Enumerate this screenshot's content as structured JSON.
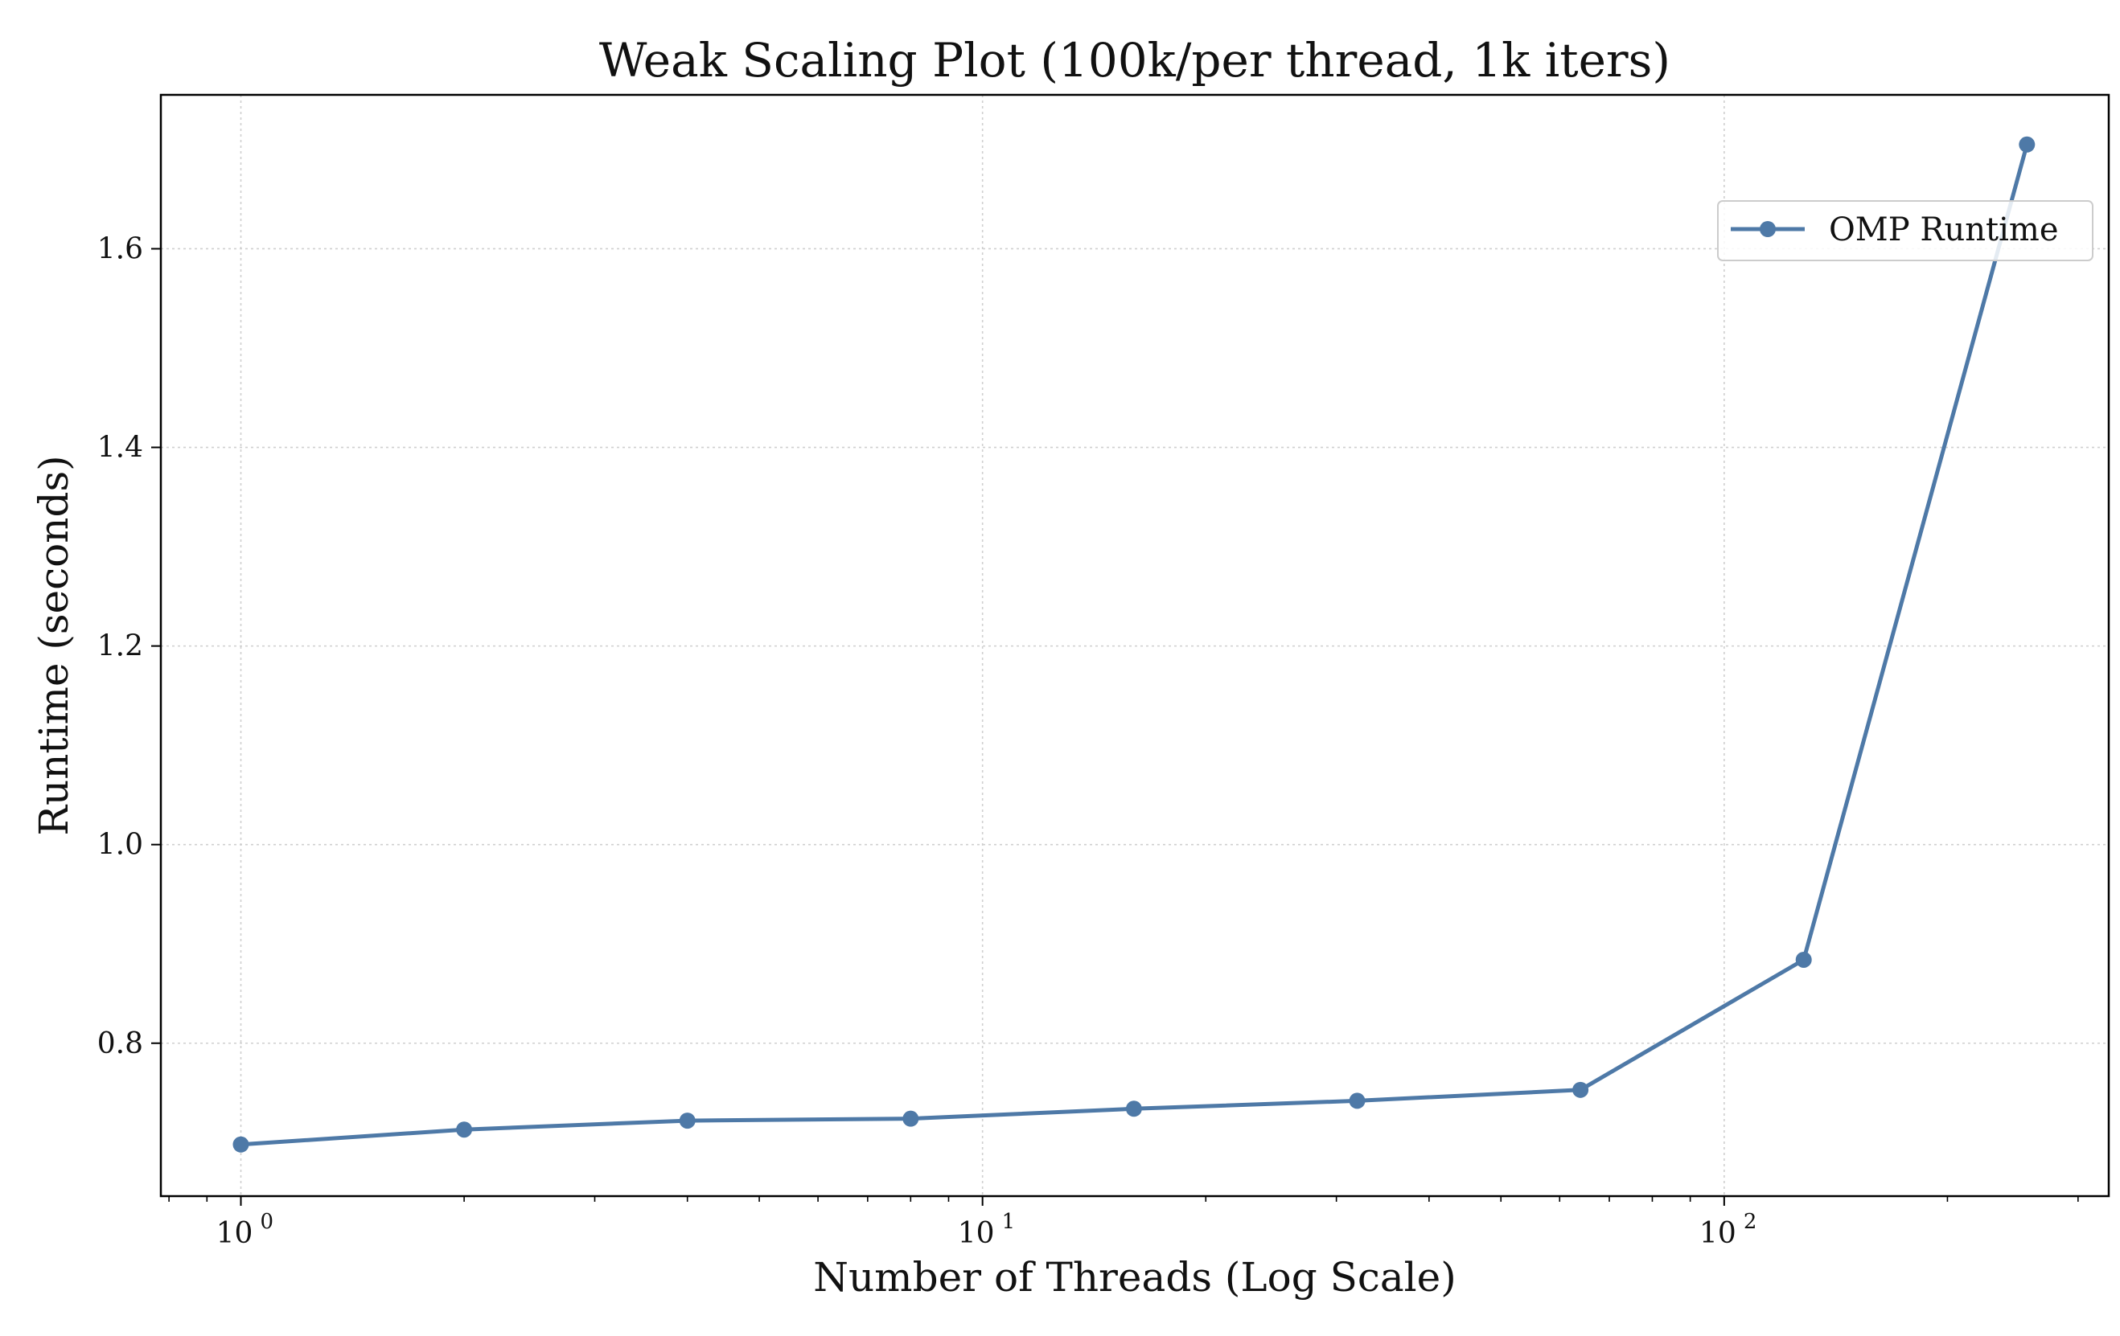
{
  "chart_data": {
    "type": "line",
    "title": "Weak Scaling Plot (100k/per thread, 1k iters)",
    "xlabel": "Number of Threads (Log Scale)",
    "ylabel": "Runtime (seconds)",
    "x_scale": "log",
    "xlim": [
      0.78,
      330
    ],
    "ylim": [
      0.646,
      1.755
    ],
    "x_ticks": [
      {
        "value": 1,
        "base": "10",
        "exp": "0"
      },
      {
        "value": 10,
        "base": "10",
        "exp": "1"
      },
      {
        "value": 100,
        "base": "10",
        "exp": "2"
      }
    ],
    "y_ticks": [
      {
        "value": 0.8,
        "label": "0.8"
      },
      {
        "value": 1.0,
        "label": "1.0"
      },
      {
        "value": 1.2,
        "label": "1.2"
      },
      {
        "value": 1.4,
        "label": "1.4"
      },
      {
        "value": 1.6,
        "label": "1.6"
      }
    ],
    "grid": true,
    "legend_position": "upper right",
    "series": [
      {
        "name": "OMP Runtime",
        "color": "#4e79a7",
        "x": [
          1,
          2,
          4,
          8,
          16,
          32,
          64,
          128,
          256
        ],
        "y": [
          0.698,
          0.713,
          0.722,
          0.724,
          0.734,
          0.742,
          0.753,
          0.884,
          1.705
        ]
      }
    ]
  }
}
